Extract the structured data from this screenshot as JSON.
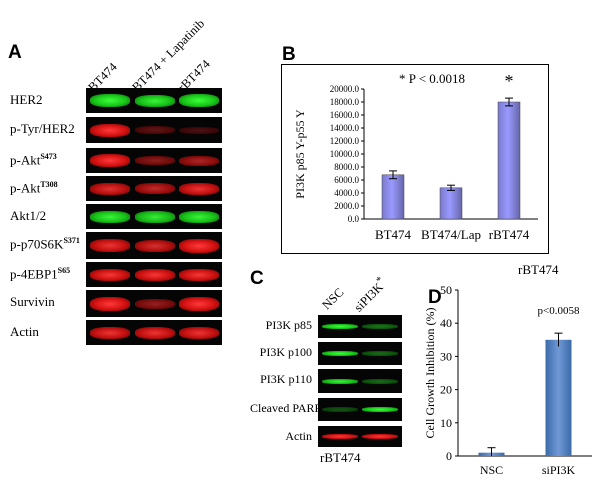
{
  "panelA": {
    "letter": "A",
    "lanes": [
      "BT474",
      "BT474 + Lapatinib",
      "rBT474"
    ],
    "rows": [
      {
        "label": "HER2",
        "sup": "",
        "color": "green",
        "intensity": [
          1.0,
          0.95,
          1.0
        ]
      },
      {
        "label": "p-Tyr/HER2",
        "sup": "",
        "color": "red",
        "intensity": [
          1.0,
          0.25,
          0.15
        ]
      },
      {
        "label": "p-Akt",
        "sup": "S473",
        "color": "red",
        "intensity": [
          1.0,
          0.45,
          0.6
        ]
      },
      {
        "label": "p-Akt",
        "sup": "T308",
        "color": "red",
        "intensity": [
          0.85,
          0.7,
          0.9
        ]
      },
      {
        "label": "Akt1/2",
        "sup": "",
        "color": "green",
        "intensity": [
          0.95,
          0.9,
          0.95
        ]
      },
      {
        "label": "p-p70S6K",
        "sup": "S371",
        "color": "red",
        "intensity": [
          0.9,
          0.8,
          1.0
        ]
      },
      {
        "label": "p-4EBP1",
        "sup": "S65",
        "color": "red",
        "intensity": [
          0.95,
          0.95,
          0.95
        ]
      },
      {
        "label": "Survivin",
        "sup": "",
        "color": "red",
        "intensity": [
          1.0,
          0.5,
          1.0
        ]
      },
      {
        "label": "Actin",
        "sup": "",
        "color": "red",
        "intensity": [
          0.9,
          0.9,
          0.9
        ]
      }
    ]
  },
  "panelB": {
    "letter": "B",
    "annotation": "* P < 0.0018",
    "star": "*",
    "chart_data": {
      "type": "bar",
      "categories": [
        "BT474",
        "BT474/Lap",
        "rBT474"
      ],
      "values": [
        6800,
        4800,
        18000
      ],
      "errors": [
        600,
        400,
        600
      ],
      "ylabel": "PI3K p85 Y-p55 Y",
      "ylim": [
        0,
        20000
      ],
      "yticks": [
        "0.0",
        "2000.0",
        "4000.0",
        "6000.0",
        "8000.0",
        "10000.0",
        "12000.0",
        "14000.0",
        "16000.0",
        "18000.0",
        "20000.0"
      ],
      "bar_color": "#9999ff",
      "grid": false
    }
  },
  "panelC": {
    "letter": "C",
    "lanes": [
      "NSC",
      "siPI3K"
    ],
    "lane_star": "*",
    "rows": [
      {
        "label": "PI3K p85",
        "color": "green",
        "intensity": [
          1.0,
          0.35
        ]
      },
      {
        "label": "PI3K p100",
        "color": "green",
        "intensity": [
          1.0,
          0.3
        ]
      },
      {
        "label": "PI3K p110",
        "color": "green",
        "intensity": [
          0.95,
          0.3
        ]
      },
      {
        "label": "Cleaved PARP",
        "color": "green",
        "intensity": [
          0.2,
          1.0
        ]
      },
      {
        "label": "Actin",
        "color": "red",
        "intensity": [
          1.0,
          1.0
        ]
      }
    ],
    "footer": "rBT474"
  },
  "panelD": {
    "letter": "D",
    "title": "rBT474",
    "annotation": "p<0.0058",
    "chart_data": {
      "type": "bar",
      "categories": [
        "NSC",
        "siPI3K"
      ],
      "values": [
        1,
        35
      ],
      "errors": [
        1.5,
        2
      ],
      "ylabel": "Cell Growth Inhibition (%)",
      "ylim": [
        0,
        50
      ],
      "yticks": [
        "0",
        "10",
        "20",
        "30",
        "40",
        "50"
      ],
      "bar_color": "#4f81bd",
      "grid": false
    }
  }
}
